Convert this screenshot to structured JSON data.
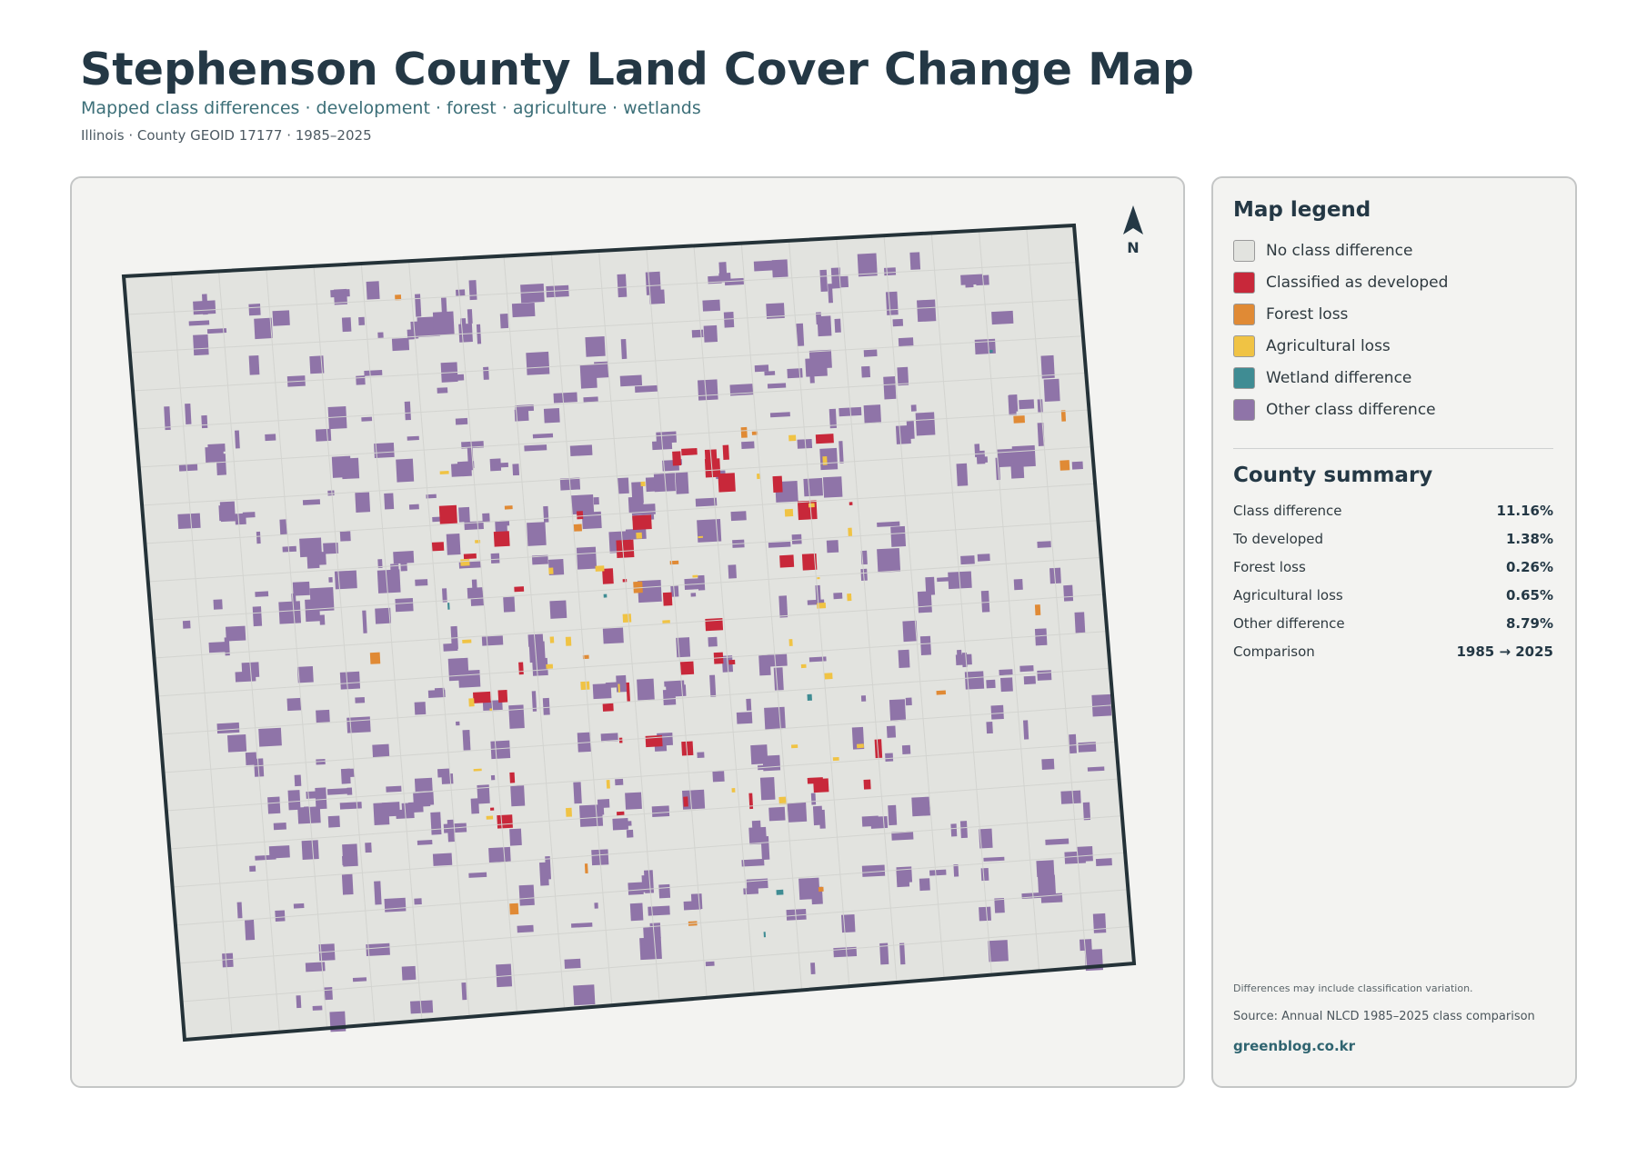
{
  "header": {
    "title": "Stephenson County Land Cover Change Map",
    "subtitle": "Mapped class differences · development · forest · agriculture · wetlands",
    "meta": "Illinois · County GEOID 17177 · 1985–2025"
  },
  "map": {
    "north": "N"
  },
  "legend": {
    "title": "Map legend",
    "items": [
      {
        "label": "No class difference",
        "color": "#e2e3df"
      },
      {
        "label": "Classified as developed",
        "color": "#c8283a"
      },
      {
        "label": "Forest loss",
        "color": "#e08a35"
      },
      {
        "label": "Agricultural loss",
        "color": "#f0c344"
      },
      {
        "label": "Wetland difference",
        "color": "#3f8c93"
      },
      {
        "label": "Other class difference",
        "color": "#8f74a8"
      }
    ]
  },
  "summary": {
    "title": "County summary",
    "rows": [
      [
        "Class difference",
        "11.16%"
      ],
      [
        "To developed",
        "1.38%"
      ],
      [
        "Forest loss",
        "0.26%"
      ],
      [
        "Agricultural loss",
        "0.65%"
      ],
      [
        "Other difference",
        "8.79%"
      ],
      [
        "Comparison",
        "1985 → 2025"
      ]
    ]
  },
  "footer": {
    "note": "Differences may include classification variation.",
    "source": "Source: Annual NLCD 1985–2025 class comparison",
    "link": "greenblog.co.kr"
  }
}
